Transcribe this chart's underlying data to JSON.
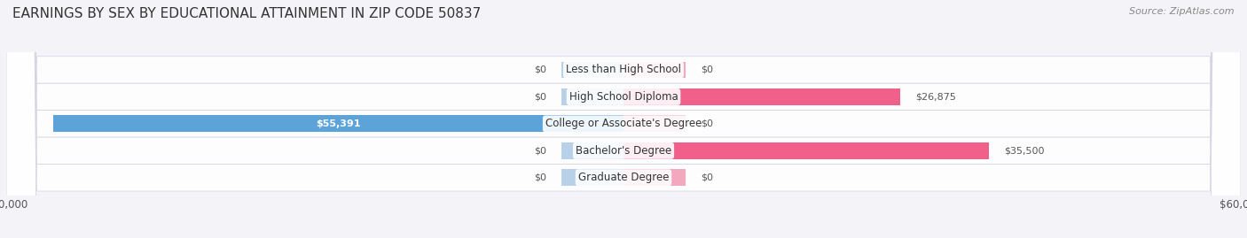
{
  "title": "EARNINGS BY SEX BY EDUCATIONAL ATTAINMENT IN ZIP CODE 50837",
  "source": "Source: ZipAtlas.com",
  "categories": [
    "Less than High School",
    "High School Diploma",
    "College or Associate's Degree",
    "Bachelor's Degree",
    "Graduate Degree"
  ],
  "male_values": [
    0,
    0,
    55391,
    0,
    0
  ],
  "female_values": [
    0,
    26875,
    0,
    35500,
    0
  ],
  "male_color_full": "#5ba3d9",
  "male_color_stub": "#b8d0e8",
  "female_color_full": "#f0608a",
  "female_color_stub": "#f4a8c0",
  "axis_max": 60000,
  "stub_size": 6000,
  "bg_color": "#f4f4f8",
  "row_bg_color": "#ebebf2",
  "row_bg_odd": "#f0f0f6",
  "title_fontsize": 11,
  "label_fontsize": 8.5,
  "tick_fontsize": 8.5,
  "value_label_inside_color": "#ffffff",
  "value_label_outside_color": "#444444"
}
